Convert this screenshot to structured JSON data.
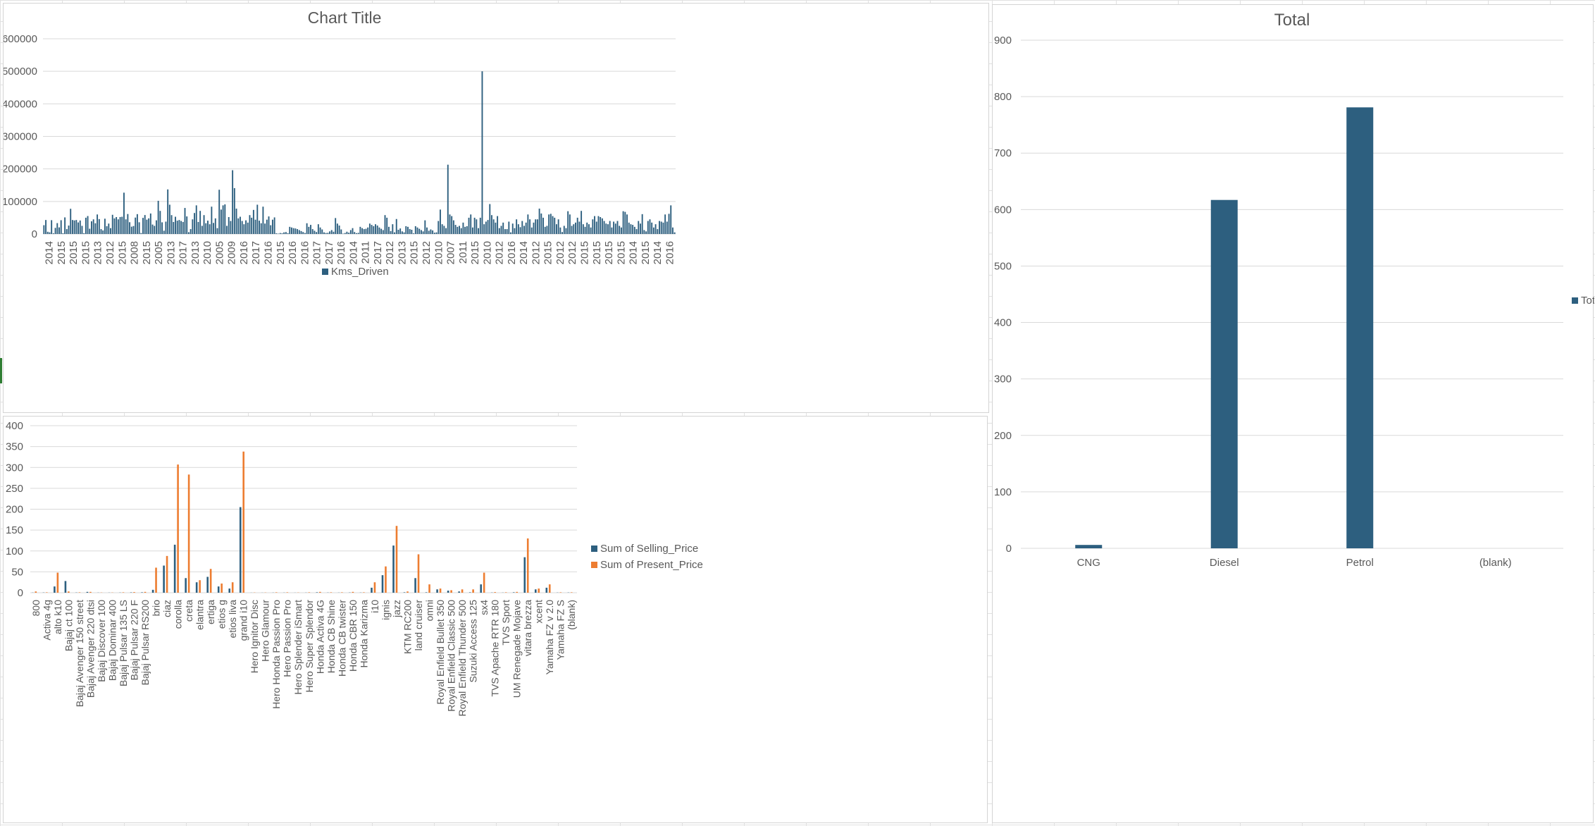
{
  "colors": {
    "blue": "#2d5f7f",
    "orange": "#ed7d31",
    "grid": "#d9d9d9",
    "text": "#595959"
  },
  "charts": [
    {
      "type": "bar",
      "title": "Chart Title",
      "ylim": [
        0,
        600000
      ],
      "yticks": [
        "0",
        "100000",
        "200000",
        "300000",
        "400000",
        "500000",
        "600000"
      ],
      "legend": "Kms_Driven",
      "legend_position": "bottom",
      "xlabels": [
        "2014",
        "2015",
        "2015",
        "2015",
        "2013",
        "2012",
        "2015",
        "2008",
        "2015",
        "2005",
        "2013",
        "2017",
        "2013",
        "2010",
        "2005",
        "2009",
        "2016",
        "2017",
        "2016",
        "2015",
        "2016",
        "2016",
        "2017",
        "2017",
        "2016",
        "2014",
        "2011",
        "2017",
        "2012",
        "2013",
        "2015",
        "2012",
        "2010",
        "2007",
        "2011",
        "2015",
        "2010",
        "2012",
        "2016",
        "2014",
        "2012",
        "2015",
        "2012",
        "2012",
        "2015",
        "2015",
        "2015",
        "2015",
        "2014",
        "2015",
        "2014",
        "2016"
      ]
    },
    {
      "type": "bar",
      "title": "",
      "ylim": [
        0,
        400
      ],
      "yticks": [
        "0",
        "50",
        "100",
        "150",
        "200",
        "250",
        "300",
        "350",
        "400"
      ],
      "legend_position": "right",
      "categories": [
        "800",
        "Activa 4g",
        "alto k10",
        "Bajaj ct 100",
        "Bajaj Avenger 150 street",
        "Bajaj Avenger 220 dtsi",
        "Bajaj Discover 100",
        "Bajaj Dominar 400",
        "Bajaj Pulsar 135 LS",
        "Bajaj Pulsar 220 F",
        "Bajaj Pulsar RS200",
        "brio",
        "ciaz",
        "corolla",
        "creta",
        "elantra",
        "ertiga",
        "etios g",
        "etios liva",
        "grand i10",
        "Hero Ignitor Disc",
        "Hero Glamour",
        "Hero Honda Passion Pro",
        "Hero Passion Pro",
        "Hero Splender iSmart",
        "Hero Super Splendor",
        "Honda Activa 4G",
        "Honda CB Shine",
        "Honda CB twister",
        "Honda CBR 150",
        "Honda Karizma",
        "i10",
        "ignis",
        "jazz",
        "KTM RC200",
        "land cruiser",
        "omni",
        "Royal Enfield Bullet 350",
        "Royal Enfield Classic 500",
        "Royal Enfield Thunder 500",
        "Suzuki Access 125",
        "sx4",
        "TVS Apache RTR 180",
        "TVS Sport",
        "UM Renegade Mojave",
        "vitara brezza",
        "xcent",
        "Yamaha FZ  v 2.0",
        "Yamaha FZ S",
        "(blank)"
      ],
      "series": [
        {
          "name": "Sum of Selling_Price",
          "values": [
            0.35,
            0.5,
            15,
            28,
            0.5,
            2,
            0.3,
            0.3,
            0.4,
            0.8,
            1,
            7,
            65,
            115,
            35,
            25,
            38,
            15,
            10,
            205,
            0.2,
            0.2,
            0.3,
            0.3,
            0.2,
            0.3,
            1,
            0.4,
            0.3,
            0.5,
            0.4,
            12,
            42,
            113,
            1,
            35,
            1,
            8,
            5,
            3,
            1,
            20,
            0.5,
            0.3,
            1,
            85,
            8,
            12,
            0.4,
            0.5
          ]
        },
        {
          "name": "Sum of Present_Price",
          "values": [
            3,
            1,
            48,
            3,
            1,
            2,
            0.5,
            0.5,
            1,
            1.5,
            2,
            60,
            88,
            307,
            283,
            30,
            57,
            22,
            25,
            338,
            0.5,
            0.5,
            1,
            1,
            0.5,
            1,
            2,
            1,
            1,
            2,
            1,
            25,
            63,
            160,
            3,
            92,
            20,
            10,
            6,
            8,
            8,
            48,
            1.5,
            1,
            2,
            130,
            10,
            20,
            1,
            1
          ]
        }
      ]
    },
    {
      "type": "bar",
      "title": "Total",
      "ylim": [
        0,
        900
      ],
      "yticks": [
        "0",
        "100",
        "200",
        "300",
        "400",
        "500",
        "600",
        "700",
        "800",
        "900"
      ],
      "legend": "Total",
      "legend_position": "right",
      "categories": [
        "CNG",
        "Diesel",
        "Petrol",
        "(blank)"
      ],
      "values": [
        6,
        617,
        781,
        0
      ]
    }
  ],
  "chart_data": [
    {
      "type": "bar",
      "title": "Chart Title",
      "ylim": [
        0,
        600000
      ],
      "series": [
        {
          "name": "Kms_Driven",
          "values": [
            27000,
            43000,
            6900,
            5200,
            42450,
            2071,
            18796,
            33429,
            20273,
            42367,
            2135,
            51000,
            15000,
            26000,
            77427,
            43000,
            41678,
            43000,
            35500,
            41442,
            25000,
            2400,
            50000,
            55138,
            16200,
            39000,
            45000,
            33019,
            60000,
            45780,
            15000,
            10980,
            47000,
            24000,
            32000,
            18000,
            59000,
            48000,
            52000,
            45000,
            52132,
            53000,
            127000,
            45000,
            61381,
            36198,
            22517,
            24524,
            50456,
            61000,
            36000,
            3000,
            49562,
            58242,
            44000,
            48000,
            63000,
            29000,
            25000,
            42000,
            102000,
            71000,
            35866,
            10079,
            38000,
            137000,
            90000,
            58000,
            37000,
            53000,
            41000,
            43000,
            40000,
            37000,
            80000,
            54000,
            5600,
            15000,
            45000,
            64532,
            88000,
            37000,
            71000,
            25000,
            58000,
            33000,
            41000,
            30000,
            84000,
            34000,
            48000,
            18000,
            136000,
            75000,
            88000,
            91000,
            25000,
            52000,
            40000,
            196000,
            141000,
            78000,
            48000,
            53000,
            40000,
            30000,
            42000,
            35000,
            58000,
            50000,
            74000,
            44000,
            90000,
            41000,
            33000,
            84000,
            32000,
            44000,
            54000,
            27000,
            44000,
            51000,
            2000,
            1000,
            3000,
            2000,
            5000,
            6000,
            2500,
            22000,
            20000,
            18000,
            17000,
            15000,
            12000,
            9000,
            6000,
            3000,
            33000,
            22000,
            28000,
            15000,
            10000,
            6000,
            30000,
            20000,
            14000,
            5000,
            3000,
            3500,
            8000,
            12000,
            7000,
            49000,
            32000,
            26000,
            14000,
            1000,
            3000,
            7000,
            4000,
            12000,
            18000,
            6000,
            2500,
            3500,
            22000,
            18000,
            15000,
            16000,
            20000,
            32000,
            28000,
            24000,
            30000,
            26000,
            20000,
            16000,
            12000,
            58000,
            50000,
            22000,
            9000,
            30000,
            5000,
            46000,
            13000,
            17000,
            8000,
            5000,
            24000,
            22000,
            15000,
            13000,
            2000,
            24000,
            20000,
            16000,
            12000,
            8000,
            42000,
            20000,
            10000,
            14000,
            11000,
            4000,
            5000,
            40000,
            75000,
            30000,
            25000,
            18000,
            213000,
            60000,
            55000,
            42000,
            28000,
            22000,
            25000,
            18000,
            35000,
            22000,
            24000,
            50000,
            60000,
            20000,
            50000,
            45000,
            18000,
            50000,
            500000,
            30000,
            38000,
            43000,
            92000,
            58000,
            45000,
            35000,
            55000,
            18000,
            25000,
            35000,
            15000,
            15000,
            38000,
            5000,
            32000,
            18000,
            45000,
            30000,
            21000,
            40000,
            25000,
            35000,
            60000,
            45000,
            20000,
            35000,
            45000,
            45000,
            78000,
            63000,
            50000,
            22000,
            25000,
            60000,
            62000,
            55000,
            50000,
            30000,
            45000,
            20000,
            6000,
            25000,
            18000,
            70000,
            60000,
            25000,
            30000,
            35000,
            50000,
            38000,
            71000,
            30000,
            22000,
            35000,
            30000,
            20000,
            45000,
            55000,
            38000,
            55000,
            52000,
            48000,
            40000,
            32000,
            30000,
            40000,
            20000,
            38000,
            32000,
            40000,
            25000,
            20000,
            70000,
            68000,
            60000,
            35000,
            30000,
            28000,
            22000,
            15000,
            40000,
            32000,
            61000,
            12000,
            8000,
            40000,
            45000,
            35000,
            20000,
            30000,
            15000,
            40000,
            38000,
            35000,
            60000,
            38000,
            62000,
            88000,
            20000,
            5000
          ]
        }
      ]
    },
    {
      "type": "bar",
      "ylim": [
        0,
        400
      ],
      "categories": [
        "800",
        "Activa 4g",
        "alto k10",
        "Bajaj ct 100",
        "Bajaj Avenger 150 street",
        "Bajaj Avenger 220 dtsi",
        "Bajaj Discover 100",
        "Bajaj Dominar 400",
        "Bajaj Pulsar 135 LS",
        "Bajaj Pulsar 220 F",
        "Bajaj Pulsar RS200",
        "brio",
        "ciaz",
        "corolla",
        "creta",
        "elantra",
        "ertiga",
        "etios g",
        "etios liva",
        "grand i10",
        "Hero Ignitor Disc",
        "Hero Glamour",
        "Hero Honda Passion Pro",
        "Hero Passion Pro",
        "Hero Splender iSmart",
        "Hero Super Splendor",
        "Honda Activa 4G",
        "Honda CB Shine",
        "Honda CB twister",
        "Honda CBR 150",
        "Honda Karizma",
        "i10",
        "ignis",
        "jazz",
        "KTM RC200",
        "land cruiser",
        "omni",
        "Royal Enfield Bullet 350",
        "Royal Enfield Classic 500",
        "Royal Enfield Thunder 500",
        "Suzuki Access 125",
        "sx4",
        "TVS Apache RTR 180",
        "TVS Sport",
        "UM Renegade Mojave",
        "vitara brezza",
        "xcent",
        "Yamaha FZ  v 2.0",
        "Yamaha FZ S",
        "(blank)"
      ],
      "series": [
        {
          "name": "Sum of Selling_Price",
          "values": [
            0.35,
            0.5,
            15,
            28,
            0.5,
            2,
            0.3,
            0.3,
            0.4,
            0.8,
            1,
            7,
            65,
            115,
            35,
            25,
            38,
            15,
            10,
            205,
            0.2,
            0.2,
            0.3,
            0.3,
            0.2,
            0.3,
            1,
            0.4,
            0.3,
            0.5,
            0.4,
            12,
            42,
            113,
            1,
            35,
            1,
            8,
            5,
            3,
            1,
            20,
            0.5,
            0.3,
            1,
            85,
            8,
            12,
            0.4,
            0.5
          ]
        },
        {
          "name": "Sum of Present_Price",
          "values": [
            3,
            1,
            48,
            3,
            1,
            2,
            0.5,
            0.5,
            1,
            1.5,
            2,
            60,
            88,
            307,
            283,
            30,
            57,
            22,
            25,
            338,
            0.5,
            0.5,
            1,
            1,
            0.5,
            1,
            2,
            1,
            1,
            2,
            1,
            25,
            63,
            160,
            3,
            92,
            20,
            10,
            6,
            8,
            8,
            48,
            1.5,
            1,
            2,
            130,
            10,
            20,
            1,
            1
          ]
        }
      ]
    },
    {
      "type": "bar",
      "title": "Total",
      "ylim": [
        0,
        900
      ],
      "categories": [
        "CNG",
        "Diesel",
        "Petrol",
        "(blank)"
      ],
      "series": [
        {
          "name": "Total",
          "values": [
            6,
            617,
            781,
            0
          ]
        }
      ]
    }
  ]
}
